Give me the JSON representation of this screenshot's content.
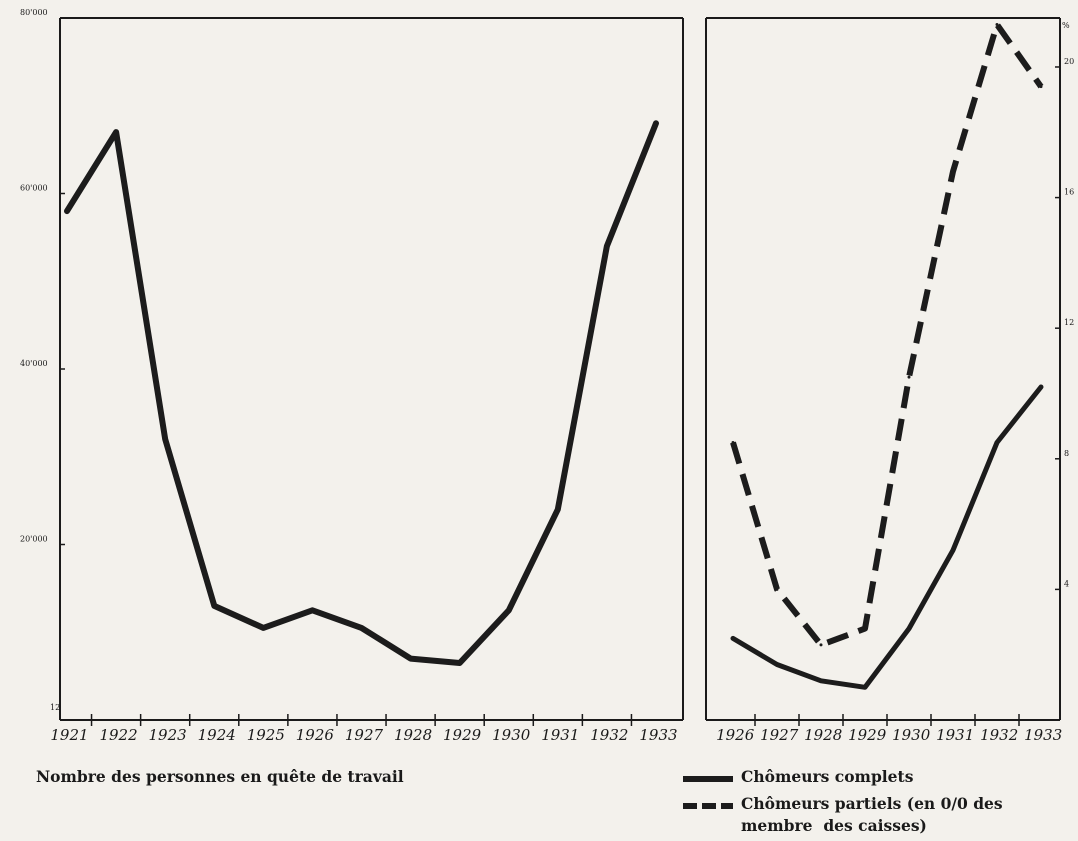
{
  "chart_data": [
    {
      "type": "line",
      "title": "",
      "caption": "Nombre des personnes en quête de travail",
      "corner_label": "12",
      "xlabel": "",
      "ylabel": "",
      "x": [
        "1921",
        "1922",
        "1923",
        "1924",
        "1925",
        "1926",
        "1927",
        "1928",
        "1929",
        "1930",
        "1931",
        "1932",
        "1933"
      ],
      "ylim": [
        0,
        80000
      ],
      "yticks": [
        20000,
        40000,
        60000,
        80000
      ],
      "ytick_labels": [
        "20'000",
        "40'000",
        "60'000",
        "80'000"
      ],
      "grid": false,
      "series": [
        {
          "name": "Nombre des personnes en quête de travail",
          "style": "solid",
          "values": [
            58000,
            67000,
            32000,
            13000,
            10500,
            12500,
            10500,
            7000,
            6500,
            12500,
            24000,
            54000,
            68000
          ]
        }
      ]
    },
    {
      "type": "line",
      "title": "",
      "xlabel": "",
      "ylabel": "",
      "unit_label": "%",
      "x": [
        "1926",
        "1927",
        "1928",
        "1929",
        "1930",
        "1931",
        "1932",
        "1933"
      ],
      "ylim": [
        0,
        21.5
      ],
      "yticks": [
        4,
        8,
        12,
        16,
        20
      ],
      "ytick_labels": [
        "4",
        "8",
        "12",
        "16",
        "20"
      ],
      "grid": false,
      "legend": {
        "placement": "bottom",
        "entries": [
          {
            "label": "Chômeurs complets",
            "style": "solid"
          },
          {
            "label": "Chômeurs partiels (en 0/0 des",
            "label_cont": "membre  des caisses)",
            "style": "dashed"
          }
        ]
      },
      "series": [
        {
          "name": "Chômeurs complets",
          "style": "solid",
          "values": [
            2.5,
            1.7,
            1.2,
            1.0,
            2.8,
            5.2,
            8.5,
            10.2
          ]
        },
        {
          "name": "Chômeurs partiels (en 0/0 des membre des caisses)",
          "style": "dashed",
          "values": [
            8.5,
            4.0,
            2.3,
            2.8,
            10.5,
            16.8,
            21.3,
            19.4
          ]
        }
      ]
    }
  ]
}
